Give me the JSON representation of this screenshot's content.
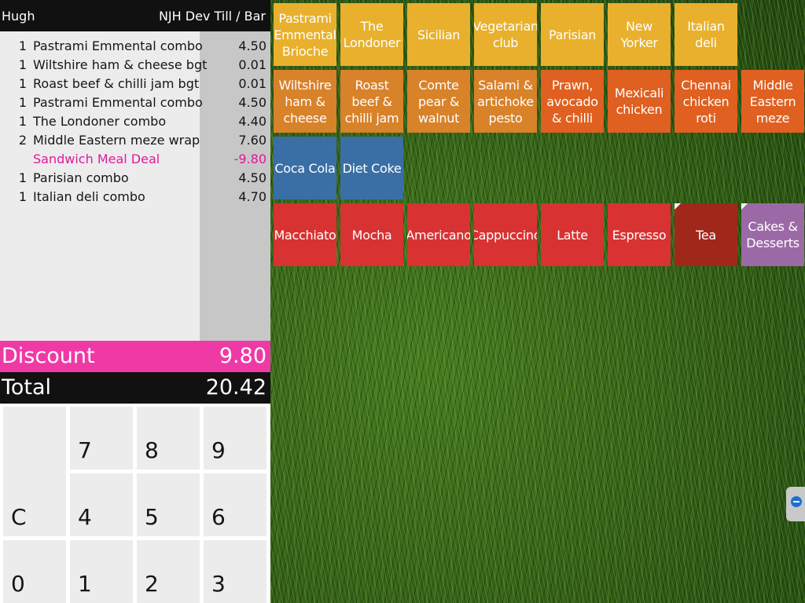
{
  "header": {
    "user": "Hugh",
    "till": "NJH Dev Till / Bar"
  },
  "order_lines": [
    {
      "qty": "1",
      "name": "Pastrami Emmental combo",
      "price": "4.50"
    },
    {
      "qty": "1",
      "name": "Wiltshire ham & cheese bgt",
      "price": "0.01"
    },
    {
      "qty": "1",
      "name": "Roast beef & chilli jam bgt",
      "price": "0.01"
    },
    {
      "qty": "1",
      "name": "Pastrami Emmental combo",
      "price": "4.50"
    },
    {
      "qty": "1",
      "name": "The Londoner combo",
      "price": "4.40"
    },
    {
      "qty": "2",
      "name": "Middle Eastern meze wrap",
      "price": "7.60"
    },
    {
      "qty": "",
      "name": "Sandwich Meal Deal",
      "price": "-9.80",
      "deal": true
    },
    {
      "qty": "1",
      "name": "Parisian combo",
      "price": "4.50"
    },
    {
      "qty": "1",
      "name": "Italian deli combo",
      "price": "4.70"
    }
  ],
  "discount": {
    "label": "Discount",
    "value": "9.80"
  },
  "total": {
    "label": "Total",
    "value": "20.42"
  },
  "keypad": [
    "C",
    "7",
    "8",
    "9",
    "4",
    "5",
    "6",
    "0",
    "1",
    "2",
    "3"
  ],
  "tiles": [
    [
      {
        "label": "Pastrami Emmental Brioche",
        "color": "#e8b02c"
      },
      {
        "label": "The Londoner",
        "color": "#e8b02c"
      },
      {
        "label": "Sicilian",
        "color": "#e8b02c"
      },
      {
        "label": "Vegetarian club",
        "color": "#e8b02c"
      },
      {
        "label": "Parisian",
        "color": "#e8b02c"
      },
      {
        "label": "New Yorker",
        "color": "#e8b02c"
      },
      {
        "label": "Italian deli",
        "color": "#e8b02c"
      }
    ],
    [
      {
        "label": "Wiltshire ham & cheese",
        "color": "#d8822a"
      },
      {
        "label": "Roast beef & chilli jam",
        "color": "#d8822a"
      },
      {
        "label": "Comte pear & walnut",
        "color": "#d8822a"
      },
      {
        "label": "Salami & artichoke pesto",
        "color": "#d8822a"
      },
      {
        "label": "Prawn, avocado & chilli",
        "color": "#df6020"
      },
      {
        "label": "Mexicali chicken",
        "color": "#df6020"
      },
      {
        "label": "Chennai chicken roti",
        "color": "#df6020"
      },
      {
        "label": "Middle Eastern meze",
        "color": "#df6020"
      }
    ],
    [
      {
        "label": "Coca Cola",
        "color": "#3a6fa6"
      },
      {
        "label": "Diet Coke",
        "color": "#3a6fa6"
      }
    ],
    [
      {
        "label": "Macchiato",
        "color": "#d83232"
      },
      {
        "label": "Mocha",
        "color": "#d83232"
      },
      {
        "label": "Americano",
        "color": "#d83232"
      },
      {
        "label": "Cappuccino",
        "color": "#d83232"
      },
      {
        "label": "Latte",
        "color": "#d83232"
      },
      {
        "label": "Espresso",
        "color": "#d83232"
      },
      {
        "label": "Tea",
        "color": "#a0281a",
        "corner": true
      },
      {
        "label": "Cakes & Desserts",
        "color": "#9b6aa6",
        "corner": true
      }
    ]
  ]
}
